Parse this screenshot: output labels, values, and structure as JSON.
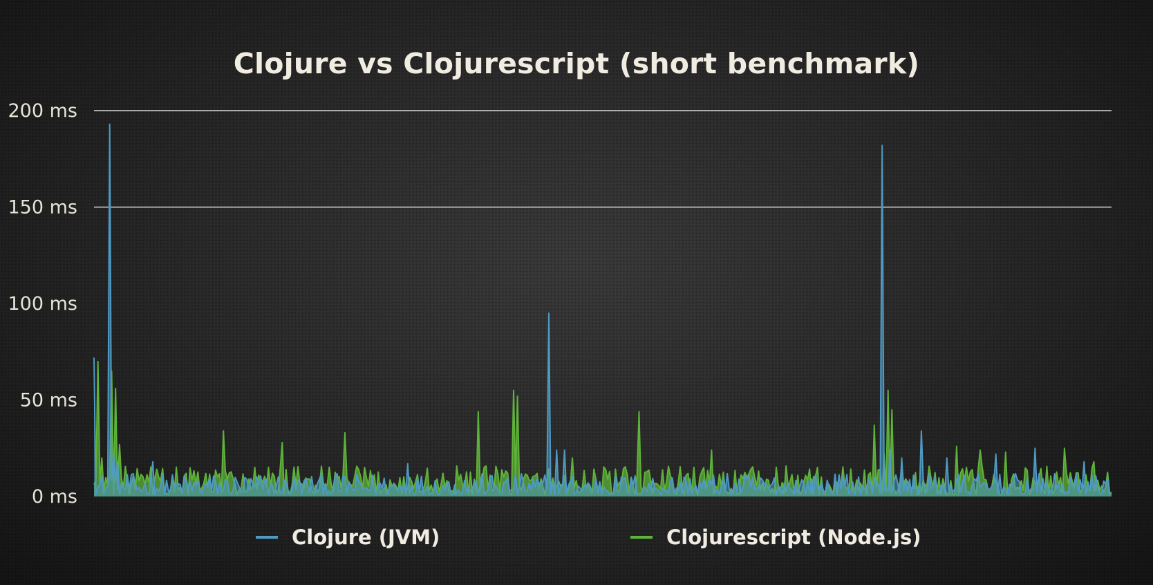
{
  "slide": {
    "title": "Clojure vs Clojurescript (short benchmark)"
  },
  "colors": {
    "background": "#2a2a2a",
    "gridline": "#d8d8d8",
    "text": "#f1ece2",
    "clojure_jvm": "#4f9ac4",
    "clojurescript_node": "#5fb23a"
  },
  "chart_data": {
    "type": "line",
    "title": "Clojure vs Clojurescript (short benchmark)",
    "xlabel": "",
    "ylabel": "",
    "ylim": [
      0,
      200
    ],
    "y_unit": "ms",
    "yticks": [
      0,
      50,
      100,
      150,
      200
    ],
    "ytick_labels": [
      "0 ms",
      "50 ms",
      "100 ms",
      "150 ms",
      "200 ms"
    ],
    "grid": "horizontal lines at 150 and 200",
    "legend": "bottom",
    "x_count": 520,
    "series": [
      {
        "name": "Clojure (JVM)",
        "color": "#4f9ac4",
        "baseline_range": [
          1,
          12
        ],
        "spikes": [
          {
            "x": 0,
            "y": 72
          },
          {
            "x": 8,
            "y": 193
          },
          {
            "x": 10,
            "y": 22
          },
          {
            "x": 12,
            "y": 18
          },
          {
            "x": 30,
            "y": 18
          },
          {
            "x": 160,
            "y": 17
          },
          {
            "x": 232,
            "y": 95
          },
          {
            "x": 236,
            "y": 24
          },
          {
            "x": 240,
            "y": 24
          },
          {
            "x": 402,
            "y": 182
          },
          {
            "x": 406,
            "y": 24
          },
          {
            "x": 412,
            "y": 20
          },
          {
            "x": 422,
            "y": 34
          },
          {
            "x": 435,
            "y": 20
          },
          {
            "x": 460,
            "y": 22
          },
          {
            "x": 480,
            "y": 25
          },
          {
            "x": 505,
            "y": 18
          }
        ]
      },
      {
        "name": "Clojurescript (Node.js)",
        "color": "#5fb23a",
        "baseline_range": [
          1,
          16
        ],
        "spikes": [
          {
            "x": 2,
            "y": 70
          },
          {
            "x": 4,
            "y": 20
          },
          {
            "x": 9,
            "y": 65
          },
          {
            "x": 11,
            "y": 56
          },
          {
            "x": 13,
            "y": 27
          },
          {
            "x": 66,
            "y": 34
          },
          {
            "x": 96,
            "y": 28
          },
          {
            "x": 128,
            "y": 33
          },
          {
            "x": 196,
            "y": 44
          },
          {
            "x": 214,
            "y": 55
          },
          {
            "x": 216,
            "y": 52
          },
          {
            "x": 244,
            "y": 20
          },
          {
            "x": 278,
            "y": 44
          },
          {
            "x": 315,
            "y": 24
          },
          {
            "x": 398,
            "y": 37
          },
          {
            "x": 403,
            "y": 22
          },
          {
            "x": 405,
            "y": 55
          },
          {
            "x": 407,
            "y": 45
          },
          {
            "x": 440,
            "y": 26
          },
          {
            "x": 452,
            "y": 24
          },
          {
            "x": 465,
            "y": 23
          },
          {
            "x": 495,
            "y": 25
          },
          {
            "x": 510,
            "y": 18
          }
        ]
      }
    ]
  },
  "legend": {
    "items": [
      {
        "label": "Clojure (JVM)",
        "color": "#4f9ac4"
      },
      {
        "label": "Clojurescript (Node.js)",
        "color": "#5fb23a"
      }
    ]
  }
}
